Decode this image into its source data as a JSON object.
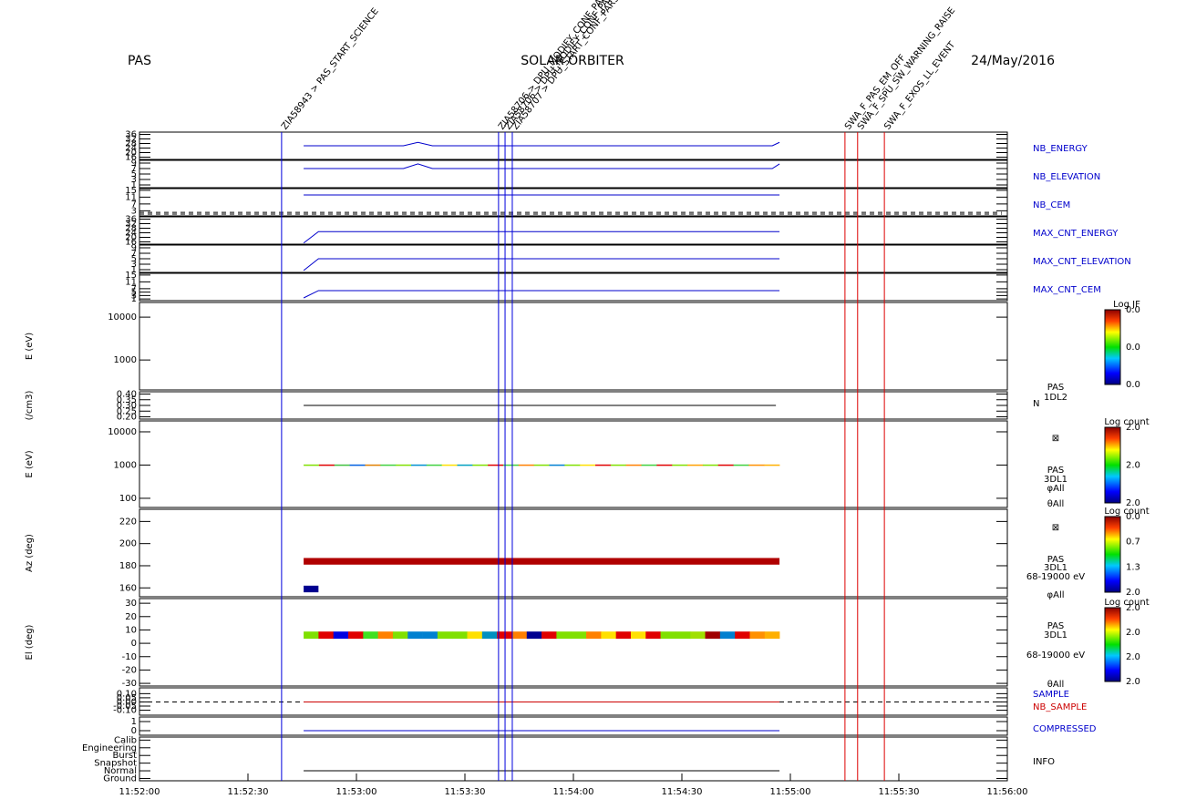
{
  "header": {
    "left": "PAS",
    "center": "SOLAR ORBITER",
    "right": "24/May/2016"
  },
  "xaxis": {
    "xlim": [
      0,
      240
    ],
    "xticks": [
      {
        "value": 0,
        "label": "11:52:00"
      },
      {
        "value": 30,
        "label": "11:52:30"
      },
      {
        "value": 60,
        "label": "11:53:00"
      },
      {
        "value": 90,
        "label": "11:53:30"
      },
      {
        "value": 120,
        "label": "11:54:00"
      },
      {
        "value": 150,
        "label": "11:54:30"
      },
      {
        "value": 180,
        "label": "11:55:00"
      },
      {
        "value": 210,
        "label": "11:55:30"
      },
      {
        "value": 240,
        "label": "11:56:00"
      }
    ]
  },
  "events": [
    {
      "label": "ZIA58943 > PAS_START_SCIENCE",
      "x": 39.3,
      "color": "#0000dd"
    },
    {
      "label": "ZIA58706 > DPU_MODIFY_CONF_PARS",
      "x": 99.3,
      "color": "#0000dd"
    },
    {
      "label": "ZIA58706 > DPU_MODIFY_CONF_PARS",
      "x": 101.1,
      "color": "#0000dd"
    },
    {
      "label": "ZIA58707 > DPU_START_CONF_PARS",
      "x": 103.1,
      "color": "#0000dd"
    },
    {
      "label": "SWA_F_PAS_EM_OFF",
      "x": 195.1,
      "color": "#dd0000"
    },
    {
      "label": "SWA_F_SPU_SW_WARNING_RAISE",
      "x": 198.6,
      "color": "#dd0000"
    },
    {
      "label": "SWA_F_EXOS_LL_EVENT",
      "x": 206.0,
      "color": "#dd0000"
    }
  ],
  "panels": [
    {
      "names": [
        {
          "text": "NB_ENERGY",
          "color": "#0000cc"
        }
      ],
      "ylim": [
        14,
        38
      ],
      "yticks": [
        16,
        20,
        24,
        28,
        32,
        36
      ],
      "line": {
        "x": [
          45.4,
          73,
          77,
          81,
          175,
          177
        ],
        "y": [
          26,
          26,
          29,
          26,
          26,
          29
        ],
        "color": "#0000cc"
      }
    },
    {
      "names": [
        {
          "text": "NB_ELEVATION",
          "color": "#0000cc"
        }
      ],
      "ylim": [
        0,
        10
      ],
      "yticks": [
        1,
        3,
        5,
        7,
        9
      ],
      "line": {
        "x": [
          45.4,
          73,
          77,
          81,
          175,
          177
        ],
        "y": [
          7,
          7,
          8.7,
          7,
          7,
          8.7
        ],
        "color": "#0000cc"
      }
    },
    {
      "names": [
        {
          "text": "NB_CEM",
          "color": "#0000cc"
        }
      ],
      "ylim": [
        0,
        16
      ],
      "yticks": [
        3,
        7,
        11,
        15
      ],
      "dashed": [
        2.1,
        1.1
      ],
      "line": {
        "x": [
          45.4,
          177
        ],
        "y": [
          12.3,
          12.3
        ],
        "color": "#0000cc"
      }
    },
    {
      "names": [
        {
          "text": "MAX_CNT_ENERGY",
          "color": "#0000cc"
        }
      ],
      "ylim": [
        14,
        38
      ],
      "yticks": [
        16,
        20,
        24,
        28,
        32,
        36
      ],
      "line": {
        "x": [
          45.4,
          49.5,
          177
        ],
        "y": [
          15,
          25,
          25
        ],
        "color": "#0000cc"
      }
    },
    {
      "names": [
        {
          "text": "MAX_CNT_ELEVATION",
          "color": "#0000cc"
        }
      ],
      "ylim": [
        0,
        10
      ],
      "yticks": [
        1,
        3,
        5,
        7,
        9
      ],
      "line": {
        "x": [
          45.4,
          49.5,
          177
        ],
        "y": [
          0.7,
          5,
          5
        ],
        "color": "#0000cc"
      }
    },
    {
      "names": [
        {
          "text": "MAX_CNT_CEM",
          "color": "#0000cc"
        }
      ],
      "ylim": [
        0,
        16
      ],
      "yticks": [
        1,
        3,
        5,
        7,
        11,
        15
      ],
      "line": {
        "x": [
          45.4,
          49.5,
          177
        ],
        "y": [
          1.6,
          5.9,
          5.9
        ],
        "color": "#0000cc"
      }
    },
    {
      "ylabel": "E (eV)",
      "log": true,
      "ylim": [
        200,
        22000
      ],
      "yticks": [
        1000,
        10000
      ],
      "colorbar": {
        "title": "Log JF",
        "ticks": [
          "0.0",
          "0.0",
          "0.0"
        ]
      }
    },
    {
      "ylabel": "(/cm3)",
      "names": [
        {
          "text": "PAS",
          "color": "#000000"
        },
        {
          "text": "1DL2",
          "color": "#000000"
        },
        {
          "text": "N",
          "color": "#000000"
        }
      ],
      "ylim": [
        0.18,
        0.42
      ],
      "yticks": [
        {
          "value": 0.2,
          "label": "0.20"
        },
        {
          "value": 0.25,
          "label": "0.25"
        },
        {
          "value": 0.3,
          "label": "0.30"
        },
        {
          "value": 0.35,
          "label": "0.35"
        },
        {
          "value": 0.4,
          "label": "0.40"
        }
      ],
      "line": {
        "x": [
          45.4,
          176
        ],
        "y": [
          0.3,
          0.3
        ],
        "color": "#000000"
      }
    },
    {
      "ylabel": "E (eV)",
      "log": true,
      "ylim": [
        53,
        21300
      ],
      "yticks": [
        100,
        1000,
        10000
      ],
      "names": [
        {
          "text": "⊠",
          "color": "#000000"
        },
        {
          "text": "PAS",
          "color": "#000000"
        },
        {
          "text": "3DL1",
          "color": "#000000"
        },
        {
          "text": "φAll",
          "color": "#000000"
        },
        {
          "text": "θAll",
          "color": "#000000"
        }
      ],
      "colorbar": {
        "title": "Log count",
        "ticks": [
          "2.0",
          "2.0",
          "2.0"
        ]
      },
      "cells": {
        "x": [
          45.4,
          177
        ],
        "y": [
          960,
          1040
        ],
        "colors": [
          "#80e000",
          "#e00000",
          "#40c040",
          "#0060e0",
          "#e08000",
          "#40d040",
          "#80e000",
          "#0090d0",
          "#40d040",
          "#ffe000",
          "#00a0c0",
          "#80e000",
          "#e00000",
          "#40d040",
          "#ff8000",
          "#80e000",
          "#0080d0",
          "#80e000",
          "#ffe000",
          "#e00000",
          "#80e000",
          "#ff8000",
          "#40d040",
          "#e00000",
          "#80e000",
          "#ffa000",
          "#80e000",
          "#e00000",
          "#40d040",
          "#ff9000",
          "#ffb000"
        ]
      }
    },
    {
      "ylabel": "Az (deg)",
      "ylim": [
        152,
        231
      ],
      "yticks": [
        160,
        180,
        200,
        220
      ],
      "names": [
        {
          "text": "⊠",
          "color": "#000000"
        },
        {
          "text": "PAS",
          "color": "#000000"
        },
        {
          "text": "3DL1",
          "color": "#000000"
        },
        {
          "text": "68-19000 eV",
          "color": "#000000"
        },
        {
          "text": "φAll",
          "color": "#000000"
        }
      ],
      "colorbar": {
        "title": "Log count",
        "ticks": [
          "2.0",
          "1.3",
          "0.7",
          "0.0"
        ]
      },
      "blocks": [
        {
          "x": [
            45.4,
            177
          ],
          "y": [
            181,
            187
          ],
          "color": "#b00000"
        },
        {
          "x": [
            45.4,
            49.5
          ],
          "y": [
            156,
            162
          ],
          "color": "#000090"
        }
      ]
    },
    {
      "ylabel": "El (deg)",
      "ylim": [
        -32,
        33.5
      ],
      "yticks": [
        -30,
        -20,
        -10,
        0,
        10,
        20,
        30
      ],
      "names": [
        {
          "text": "PAS",
          "color": "#000000"
        },
        {
          "text": "3DL1",
          "color": "#000000"
        },
        {
          "text": "68-19000 eV",
          "color": "#000000"
        },
        {
          "text": "θAll",
          "color": "#000000"
        }
      ],
      "colorbar": {
        "title": "Log count",
        "ticks": [
          "2.0",
          "2.0",
          "2.0",
          "2.0"
        ]
      },
      "cells": {
        "x": [
          45.4,
          177
        ],
        "y": [
          3.4,
          8.8
        ],
        "colors": [
          "#7fe000",
          "#e00000",
          "#0000e0",
          "#e00000",
          "#40e020",
          "#ff8000",
          "#80e000",
          "#0080d0",
          "#0080d0",
          "#80e000",
          "#80e000",
          "#ffe000",
          "#0090c0",
          "#e00000",
          "#ff8000",
          "#000090",
          "#e00000",
          "#80e000",
          "#80e000",
          "#ff8000",
          "#ffe000",
          "#e00000",
          "#ffe000",
          "#e00000",
          "#80e000",
          "#80e000",
          "#a0e000",
          "#a00000",
          "#0080d0",
          "#e00000",
          "#ff9000",
          "#ffb000"
        ]
      }
    },
    {
      "names": [
        {
          "text": "SAMPLE",
          "color": "#0000cc"
        },
        {
          "text": "NB_SAMPLE",
          "color": "#cc0000"
        }
      ],
      "ylim": [
        -0.16,
        0.17
      ],
      "yticks": [
        {
          "value": -0.1,
          "label": "-0.10"
        },
        {
          "value": -0.05,
          "label": "-0.05"
        },
        {
          "value": 0,
          "label": "0.00"
        },
        {
          "value": 0.05,
          "label": "0.05"
        },
        {
          "value": 0.1,
          "label": "0.10"
        }
      ],
      "dashed": [
        0
      ],
      "line": {
        "x": [
          45.4,
          177
        ],
        "y": [
          0,
          0
        ],
        "color": "#cc0000"
      }
    },
    {
      "names": [
        {
          "text": "COMPRESSED",
          "color": "#0000cc"
        }
      ],
      "ylim": [
        -0.5,
        1.5
      ],
      "yticks": [
        0,
        1
      ],
      "line": {
        "x": [
          45.4,
          177
        ],
        "y": [
          0,
          0
        ],
        "color": "#0000cc"
      }
    },
    {
      "names": [
        {
          "text": "INFO",
          "color": "#000000"
        }
      ],
      "ylim": [
        -0.3,
        5.4
      ],
      "yticks": [
        {
          "value": 0,
          "label": "Ground"
        },
        {
          "value": 1,
          "label": "Normal"
        },
        {
          "value": 2,
          "label": "Snapshot"
        },
        {
          "value": 3,
          "label": "Burst"
        },
        {
          "value": 4,
          "label": "Engineering"
        },
        {
          "value": 5,
          "label": "Calib"
        }
      ],
      "line": {
        "x": [
          45.4,
          177
        ],
        "y": [
          1,
          1
        ],
        "color": "#000000"
      }
    }
  ]
}
